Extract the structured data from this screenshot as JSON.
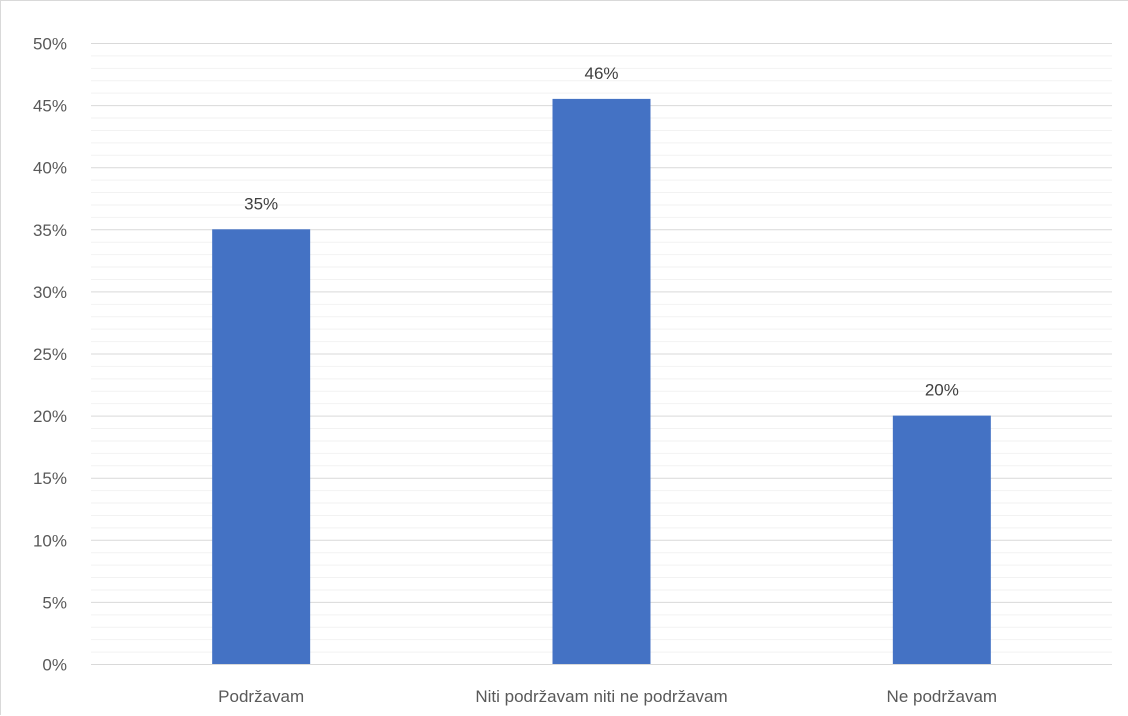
{
  "chart_data": {
    "type": "bar",
    "title": "",
    "xlabel": "",
    "ylabel": "",
    "categories": [
      "Podržavam",
      "Niti podržavam niti ne podržavam",
      "Ne podržavam"
    ],
    "values": [
      35,
      45.5,
      20
    ],
    "data_labels": [
      "35%",
      "46%",
      "20%"
    ],
    "ylim": [
      0,
      50
    ],
    "y_major_step": 5,
    "y_minor_step": 1,
    "y_tick_labels": [
      "0%",
      "5%",
      "10%",
      "15%",
      "20%",
      "25%",
      "30%",
      "35%",
      "40%",
      "45%",
      "50%"
    ],
    "grid": true,
    "legend": "none",
    "bar_color": "#4472c4",
    "major_grid_color": "#d9d9d9",
    "minor_grid_color": "#f2f2f2"
  }
}
